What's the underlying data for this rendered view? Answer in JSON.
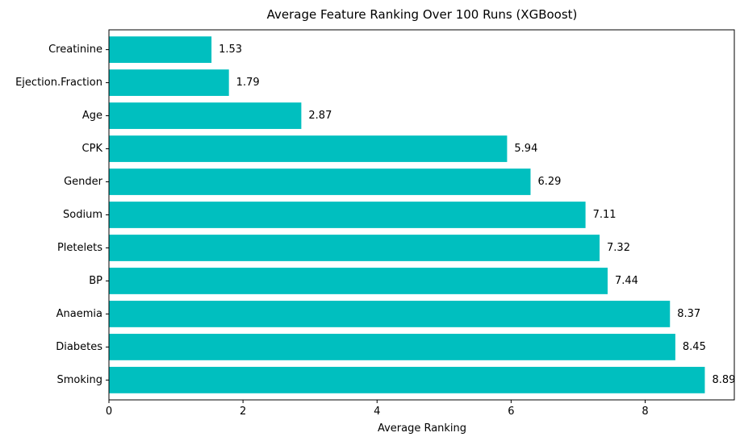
{
  "chart_data": {
    "type": "bar",
    "orientation": "horizontal",
    "title": "Average Feature Ranking Over 100 Runs (XGBoost)",
    "xlabel": "Average Ranking",
    "ylabel": "",
    "categories": [
      "Creatinine",
      "Ejection.Fraction",
      "Age",
      "CPK",
      "Gender",
      "Sodium",
      "Pletelets",
      "BP",
      "Anaemia",
      "Diabetes",
      "Smoking"
    ],
    "values": [
      1.53,
      1.79,
      2.87,
      5.94,
      6.29,
      7.11,
      7.32,
      7.44,
      8.37,
      8.45,
      8.89
    ],
    "value_labels": [
      "1.53",
      "1.79",
      "2.87",
      "5.94",
      "6.29",
      "7.11",
      "7.32",
      "7.44",
      "8.37",
      "8.45",
      "8.89"
    ],
    "xlim": [
      0,
      9.33
    ],
    "xticks": [
      0,
      2,
      4,
      6,
      8
    ],
    "xtick_labels": [
      "0",
      "2",
      "4",
      "6",
      "8"
    ],
    "bar_color": "#00bfbf",
    "grid": false,
    "legend": "none"
  }
}
